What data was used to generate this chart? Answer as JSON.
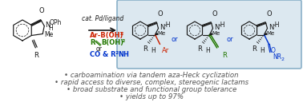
{
  "bg_color": "#ffffff",
  "box_edge_color": "#8ab0c8",
  "box_fill_color": "#dce8f0",
  "black": "#1a1a1a",
  "red": "#cc2200",
  "green": "#227700",
  "blue": "#0033cc",
  "gray": "#888888",
  "bullet_lines": [
    "• carboamination via tandem aza-Heck cyclization",
    "• rapid access to diverse, complex, stereogenic lactams",
    "• broad substrate and functional group tolerance",
    "• yields up to 97%"
  ],
  "figsize": [
    3.78,
    1.38
  ],
  "dpi": 100,
  "ylim": [
    0,
    138
  ],
  "xlim": [
    0,
    378
  ]
}
